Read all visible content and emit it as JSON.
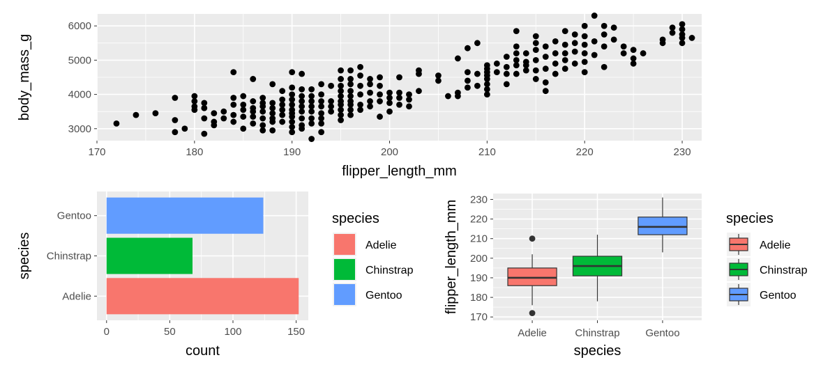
{
  "chart_data": [
    {
      "type": "scatter",
      "xlabel": "flipper_length_mm",
      "ylabel": "body_mass_g",
      "xlim": [
        170,
        232
      ],
      "ylim": [
        2650,
        6350
      ],
      "xticks": [
        170,
        180,
        190,
        200,
        210,
        220,
        230
      ],
      "yticks": [
        3000,
        4000,
        5000,
        6000
      ],
      "grid": true,
      "point_color": "#000000",
      "points": [
        [
          172,
          3150
        ],
        [
          174,
          3400
        ],
        [
          176,
          3450
        ],
        [
          178,
          3900
        ],
        [
          178,
          3250
        ],
        [
          178,
          2900
        ],
        [
          179,
          3000
        ],
        [
          180,
          3950
        ],
        [
          180,
          3800
        ],
        [
          180,
          3650
        ],
        [
          180,
          3550
        ],
        [
          181,
          3300
        ],
        [
          181,
          2850
        ],
        [
          181,
          3600
        ],
        [
          181,
          3750
        ],
        [
          182,
          3450
        ],
        [
          182,
          3200
        ],
        [
          182,
          3100
        ],
        [
          183,
          3500
        ],
        [
          183,
          3300
        ],
        [
          184,
          4650
        ],
        [
          184,
          3900
        ],
        [
          184,
          3700
        ],
        [
          184,
          3400
        ],
        [
          184,
          3200
        ],
        [
          185,
          3950
        ],
        [
          185,
          3700
        ],
        [
          185,
          3550
        ],
        [
          185,
          3350
        ],
        [
          185,
          3000
        ],
        [
          186,
          4450
        ],
        [
          186,
          3800
        ],
        [
          186,
          3600
        ],
        [
          186,
          3500
        ],
        [
          186,
          3350
        ],
        [
          186,
          3150
        ],
        [
          187,
          3900
        ],
        [
          187,
          3750
        ],
        [
          187,
          3650
        ],
        [
          187,
          3500
        ],
        [
          187,
          3300
        ],
        [
          187,
          3100
        ],
        [
          187,
          2950
        ],
        [
          188,
          4300
        ],
        [
          188,
          3750
        ],
        [
          188,
          3600
        ],
        [
          188,
          3450
        ],
        [
          188,
          3300
        ],
        [
          188,
          3200
        ],
        [
          188,
          2950
        ],
        [
          189,
          4100
        ],
        [
          189,
          3850
        ],
        [
          189,
          3700
        ],
        [
          189,
          3550
        ],
        [
          189,
          3400
        ],
        [
          189,
          3200
        ],
        [
          190,
          4650
        ],
        [
          190,
          4200
        ],
        [
          190,
          4000
        ],
        [
          190,
          3850
        ],
        [
          190,
          3700
        ],
        [
          190,
          3550
        ],
        [
          190,
          3450
        ],
        [
          190,
          3350
        ],
        [
          190,
          3200
        ],
        [
          190,
          3050
        ],
        [
          190,
          2900
        ],
        [
          191,
          4600
        ],
        [
          191,
          4150
        ],
        [
          191,
          3950
        ],
        [
          191,
          3800
        ],
        [
          191,
          3650
        ],
        [
          191,
          3500
        ],
        [
          191,
          3300
        ],
        [
          191,
          3100
        ],
        [
          191,
          3000
        ],
        [
          192,
          4150
        ],
        [
          192,
          3950
        ],
        [
          192,
          3800
        ],
        [
          192,
          3650
        ],
        [
          192,
          3500
        ],
        [
          192,
          3300
        ],
        [
          192,
          3150
        ],
        [
          192,
          2700
        ],
        [
          193,
          4300
        ],
        [
          193,
          4000
        ],
        [
          193,
          3800
        ],
        [
          193,
          3650
        ],
        [
          193,
          3450
        ],
        [
          193,
          3300
        ],
        [
          193,
          3150
        ],
        [
          193,
          2900
        ],
        [
          194,
          4250
        ],
        [
          194,
          3800
        ],
        [
          194,
          3650
        ],
        [
          194,
          3500
        ],
        [
          195,
          4700
        ],
        [
          195,
          4450
        ],
        [
          195,
          4250
        ],
        [
          195,
          4100
        ],
        [
          195,
          3950
        ],
        [
          195,
          3800
        ],
        [
          195,
          3700
        ],
        [
          195,
          3550
        ],
        [
          195,
          3400
        ],
        [
          195,
          3250
        ],
        [
          196,
          4700
        ],
        [
          196,
          4450
        ],
        [
          196,
          4300
        ],
        [
          196,
          4100
        ],
        [
          196,
          3950
        ],
        [
          196,
          3800
        ],
        [
          196,
          3700
        ],
        [
          196,
          3550
        ],
        [
          196,
          3400
        ],
        [
          197,
          4800
        ],
        [
          197,
          4550
        ],
        [
          197,
          4250
        ],
        [
          197,
          4000
        ],
        [
          197,
          3700
        ],
        [
          197,
          3550
        ],
        [
          198,
          4450
        ],
        [
          198,
          4300
        ],
        [
          198,
          4050
        ],
        [
          198,
          3800
        ],
        [
          198,
          3650
        ],
        [
          199,
          4500
        ],
        [
          199,
          4250
        ],
        [
          199,
          4000
        ],
        [
          199,
          3800
        ],
        [
          199,
          3350
        ],
        [
          200,
          4050
        ],
        [
          200,
          3900
        ],
        [
          200,
          3750
        ],
        [
          200,
          3500
        ],
        [
          201,
          4500
        ],
        [
          201,
          4050
        ],
        [
          201,
          3900
        ],
        [
          201,
          3700
        ],
        [
          202,
          4000
        ],
        [
          202,
          3850
        ],
        [
          202,
          3650
        ],
        [
          203,
          4700
        ],
        [
          203,
          4600
        ],
        [
          203,
          4100
        ],
        [
          205,
          4550
        ],
        [
          205,
          4400
        ],
        [
          206,
          3950
        ],
        [
          207,
          4050
        ],
        [
          207,
          3950
        ],
        [
          207,
          5050
        ],
        [
          208,
          4650
        ],
        [
          208,
          5350
        ],
        [
          208,
          4400
        ],
        [
          208,
          4200
        ],
        [
          209,
          4600
        ],
        [
          209,
          5500
        ],
        [
          209,
          4250
        ],
        [
          210,
          4850
        ],
        [
          210,
          4750
        ],
        [
          210,
          4650
        ],
        [
          210,
          4550
        ],
        [
          210,
          4450
        ],
        [
          210,
          4300
        ],
        [
          210,
          4150
        ],
        [
          210,
          4000
        ],
        [
          211,
          4650
        ],
        [
          211,
          4900
        ],
        [
          212,
          4800
        ],
        [
          212,
          5100
        ],
        [
          212,
          4300
        ],
        [
          212,
          4600
        ],
        [
          213,
          5850
        ],
        [
          213,
          5400
        ],
        [
          213,
          5200
        ],
        [
          213,
          5000
        ],
        [
          213,
          4850
        ],
        [
          213,
          4600
        ],
        [
          214,
          5200
        ],
        [
          214,
          4950
        ],
        [
          214,
          4850
        ],
        [
          214,
          4700
        ],
        [
          215,
          5700
        ],
        [
          215,
          5500
        ],
        [
          215,
          5300
        ],
        [
          215,
          5000
        ],
        [
          215,
          4700
        ],
        [
          215,
          4450
        ],
        [
          216,
          5400
        ],
        [
          216,
          5100
        ],
        [
          216,
          4750
        ],
        [
          216,
          4350
        ],
        [
          216,
          4100
        ],
        [
          217,
          5550
        ],
        [
          217,
          5200
        ],
        [
          217,
          4900
        ],
        [
          217,
          4600
        ],
        [
          218,
          5850
        ],
        [
          218,
          5450
        ],
        [
          218,
          5200
        ],
        [
          218,
          5000
        ],
        [
          218,
          4750
        ],
        [
          219,
          5750
        ],
        [
          219,
          5500
        ],
        [
          219,
          5250
        ],
        [
          219,
          4900
        ],
        [
          220,
          6000
        ],
        [
          220,
          5700
        ],
        [
          220,
          5450
        ],
        [
          220,
          5200
        ],
        [
          220,
          4950
        ],
        [
          220,
          4650
        ],
        [
          221,
          6300
        ],
        [
          221,
          5550
        ],
        [
          221,
          5150
        ],
        [
          222,
          6000
        ],
        [
          222,
          5750
        ],
        [
          222,
          5400
        ],
        [
          222,
          4800
        ],
        [
          223,
          5950
        ],
        [
          223,
          5600
        ],
        [
          224,
          5400
        ],
        [
          224,
          5200
        ],
        [
          225,
          5300
        ],
        [
          225,
          5050
        ],
        [
          225,
          4900
        ],
        [
          226,
          5200
        ],
        [
          228,
          5600
        ],
        [
          228,
          5500
        ],
        [
          229,
          5950
        ],
        [
          229,
          5800
        ],
        [
          230,
          6050
        ],
        [
          230,
          5900
        ],
        [
          230,
          5750
        ],
        [
          230,
          5650
        ],
        [
          230,
          5500
        ],
        [
          231,
          5650
        ]
      ]
    },
    {
      "type": "bar",
      "orientation": "horizontal",
      "xlabel": "count",
      "ylabel": "species",
      "categories": [
        "Adelie",
        "Chinstrap",
        "Gentoo"
      ],
      "values": [
        152,
        68,
        124
      ],
      "colors": [
        "#F8766D",
        "#00BA38",
        "#619CFF"
      ],
      "xlim": [
        -7.6,
        159.6
      ],
      "xticks": [
        0,
        50,
        100,
        150
      ],
      "grid": true,
      "legend": {
        "title": "species",
        "entries": [
          "Adelie",
          "Chinstrap",
          "Gentoo"
        ],
        "colors": [
          "#F8766D",
          "#00BA38",
          "#619CFF"
        ],
        "position": "right"
      }
    },
    {
      "type": "box",
      "xlabel": "species",
      "ylabel": "flipper_length_mm",
      "categories": [
        "Adelie",
        "Chinstrap",
        "Gentoo"
      ],
      "colors": [
        "#F8766D",
        "#00BA38",
        "#619CFF"
      ],
      "ylim": [
        168.3,
        233
      ],
      "yticks": [
        170,
        180,
        190,
        200,
        210,
        220,
        230
      ],
      "grid": true,
      "boxes": [
        {
          "q1": 186,
          "median": 190,
          "q3": 195,
          "whisker_low": 176,
          "whisker_high": 202,
          "outliers": [
            210,
            172
          ]
        },
        {
          "q1": 191,
          "median": 196,
          "q3": 201,
          "whisker_low": 178,
          "whisker_high": 212,
          "outliers": []
        },
        {
          "q1": 212,
          "median": 216,
          "q3": 221,
          "whisker_low": 203,
          "whisker_high": 231,
          "outliers": []
        }
      ],
      "legend": {
        "title": "species",
        "entries": [
          "Adelie",
          "Chinstrap",
          "Gentoo"
        ],
        "colors": [
          "#F8766D",
          "#00BA38",
          "#619CFF"
        ],
        "position": "right"
      }
    }
  ]
}
